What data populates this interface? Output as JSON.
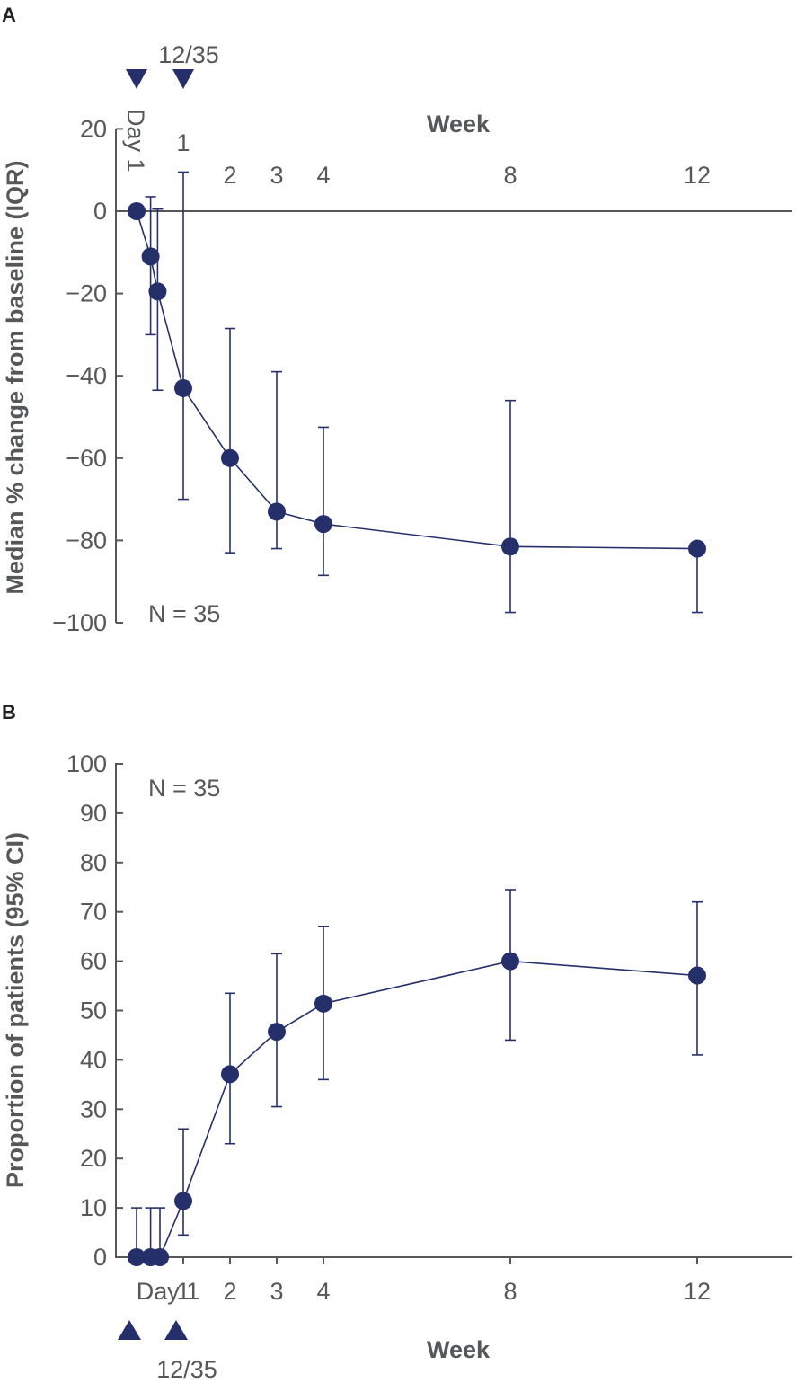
{
  "chart_data": [
    {
      "panel": "A",
      "type": "line",
      "ylabel": "Median % change from baseline (IQR)",
      "xlabel": "Week",
      "ylim": [
        -100,
        20
      ],
      "yticks": [
        "20",
        "0",
        "−20",
        "−40",
        "−60",
        "−80",
        "−100"
      ],
      "ytick_values": [
        20,
        0,
        -20,
        -40,
        -60,
        -80,
        -100
      ],
      "xticks": [
        {
          "label": "Day 1",
          "value": 0,
          "rotated": true
        },
        {
          "label": "1",
          "value": 1
        },
        {
          "label": "2",
          "value": 2
        },
        {
          "label": "3",
          "value": 3
        },
        {
          "label": "4",
          "value": 4
        },
        {
          "label": "8",
          "value": 8
        },
        {
          "label": "12",
          "value": 12
        }
      ],
      "annotation": "N = 35",
      "marker_label": "12/35",
      "marker_weeks": [
        0,
        1
      ],
      "series": [
        {
          "x": 0,
          "y": 0,
          "lo": 0,
          "hi": 0
        },
        {
          "x": 0.3,
          "y": -11,
          "lo": -30,
          "hi": 3.5
        },
        {
          "x": 0.45,
          "y": -19.5,
          "lo": -43.5,
          "hi": 0.5
        },
        {
          "x": 1,
          "y": -43,
          "lo": -70,
          "hi": 9.5
        },
        {
          "x": 2,
          "y": -60,
          "lo": -83,
          "hi": -28.5
        },
        {
          "x": 3,
          "y": -73,
          "lo": -82,
          "hi": -39
        },
        {
          "x": 4,
          "y": -76,
          "lo": -88.5,
          "hi": -52.5
        },
        {
          "x": 8,
          "y": -81.5,
          "lo": -97.5,
          "hi": -46
        },
        {
          "x": 12,
          "y": -82,
          "lo": -97.5,
          "hi": -82
        }
      ]
    },
    {
      "panel": "B",
      "type": "line",
      "ylabel": "Proportion of patients (95% CI)",
      "xlabel": "Week",
      "ylim": [
        0,
        100
      ],
      "yticks": [
        "100",
        "90",
        "80",
        "70",
        "60",
        "50",
        "40",
        "30",
        "20",
        "10",
        "0"
      ],
      "ytick_values": [
        100,
        90,
        80,
        70,
        60,
        50,
        40,
        30,
        20,
        10,
        0
      ],
      "xticks": [
        {
          "label": "Day 1",
          "value": 0
        },
        {
          "label": "1",
          "value": 1
        },
        {
          "label": "2",
          "value": 2
        },
        {
          "label": "3",
          "value": 3
        },
        {
          "label": "4",
          "value": 4
        },
        {
          "label": "8",
          "value": 8
        },
        {
          "label": "12",
          "value": 12
        }
      ],
      "annotation": "N = 35",
      "marker_label": "12/35",
      "marker_weeks": [
        0,
        1
      ],
      "series": [
        {
          "x": 0,
          "y": 0,
          "lo": 0,
          "hi": 10
        },
        {
          "x": 0.3,
          "y": 0,
          "lo": 0,
          "hi": 10
        },
        {
          "x": 0.5,
          "y": 0,
          "lo": 0,
          "hi": 10
        },
        {
          "x": 1,
          "y": 11.4,
          "lo": 4.5,
          "hi": 26
        },
        {
          "x": 2,
          "y": 37.1,
          "lo": 23,
          "hi": 53.5
        },
        {
          "x": 3,
          "y": 45.7,
          "lo": 30.5,
          "hi": 61.5
        },
        {
          "x": 4,
          "y": 51.4,
          "lo": 36,
          "hi": 67
        },
        {
          "x": 8,
          "y": 60,
          "lo": 44,
          "hi": 74.5
        },
        {
          "x": 12,
          "y": 57.1,
          "lo": 41,
          "hi": 72
        }
      ]
    }
  ]
}
